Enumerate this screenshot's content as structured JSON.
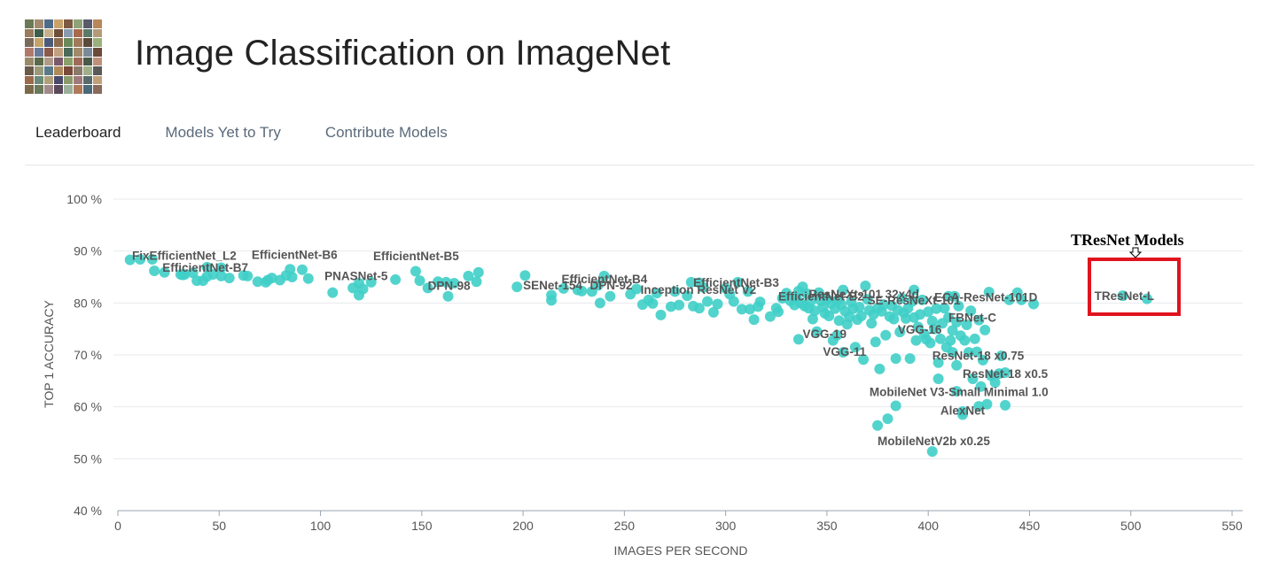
{
  "page": {
    "title": "Image Classification on ImageNet",
    "tabs": [
      {
        "label": "Leaderboard",
        "active": true
      },
      {
        "label": "Models Yet to Try",
        "active": false
      },
      {
        "label": "Contribute Models",
        "active": false
      }
    ]
  },
  "thumbnail_colors": [
    "#6b7a55",
    "#a38a6e",
    "#4f6b8a",
    "#c9a26b",
    "#7d5a44",
    "#8fa37a",
    "#5b5b6e",
    "#b7885a",
    "#9a7b5c",
    "#3e5e4a",
    "#c7b08e",
    "#6d4f3a",
    "#8a9bb0",
    "#a86a4a",
    "#5a7a6a",
    "#b59a7a",
    "#7a6a5a",
    "#c4a46a",
    "#4a5a7a",
    "#8b6b4b",
    "#6a8a5a",
    "#a07a5a",
    "#5a4a3a",
    "#9ab07a",
    "#b07a6a",
    "#6a7a9a",
    "#8a5a4a",
    "#c0a080",
    "#4a6a5a",
    "#a08a6a",
    "#7a8a9a",
    "#6b4a3a",
    "#9a8a6a",
    "#5a6a4a",
    "#b09a8a",
    "#7a5a6a",
    "#8aa06a",
    "#a06a5a",
    "#4a5a4a",
    "#c0907a",
    "#6a5a4a",
    "#9a9a7a",
    "#5a7a8a",
    "#b08a5a",
    "#7a4a3a",
    "#8a7a6a",
    "#a0b08a",
    "#5a5a5a",
    "#9a6a4a",
    "#6a8a7a",
    "#b0a07a",
    "#4a4a6a",
    "#8a9a6a",
    "#a07a7a",
    "#5a6a6a",
    "#c0a07a",
    "#7a6a4a",
    "#6a7a5a",
    "#a08a8a",
    "#5a4a5a",
    "#9ab09a",
    "#b07a5a",
    "#4a6a7a",
    "#8a6a5a"
  ],
  "chart_data": {
    "type": "scatter",
    "xlabel": "IMAGES PER SECOND",
    "ylabel": "TOP 1 ACCURACY",
    "xlim": [
      0,
      550
    ],
    "ylim": [
      40,
      100
    ],
    "xticks": [
      0,
      50,
      100,
      150,
      200,
      250,
      300,
      350,
      400,
      450,
      500,
      550
    ],
    "yticks": [
      40,
      50,
      60,
      70,
      80,
      90,
      100
    ],
    "ytick_suffix": " %",
    "point_color": "#3fcfc8",
    "annotation_title": "TResNet Models",
    "highlight_color": "#e0141e",
    "labels": [
      {
        "text": "FixEfficientNet_L2",
        "x": 7,
        "y": 88.3
      },
      {
        "text": "EfficientNet-B7",
        "x": 22,
        "y": 86.0
      },
      {
        "text": "EfficientNet-B6",
        "x": 66,
        "y": 88.5
      },
      {
        "text": "EfficientNet-B5",
        "x": 126,
        "y": 88.2
      },
      {
        "text": "PNASNet-5",
        "x": 102,
        "y": 84.4
      },
      {
        "text": "DPN-98",
        "x": 153,
        "y": 82.5
      },
      {
        "text": "EfficientNet-B4",
        "x": 219,
        "y": 83.8
      },
      {
        "text": "SENet-154",
        "x": 200,
        "y": 82.6
      },
      {
        "text": "DPN-92",
        "x": 233,
        "y": 82.6
      },
      {
        "text": "EfficientNet-B3",
        "x": 284,
        "y": 83.1
      },
      {
        "text": "Inception ResNet V2",
        "x": 258,
        "y": 81.8
      },
      {
        "text": "ResNeXt-101 32x4d",
        "x": 341,
        "y": 80.9
      },
      {
        "text": "EfficientNet-B2",
        "x": 326,
        "y": 80.5
      },
      {
        "text": "SE-ResNeXt-101",
        "x": 370,
        "y": 79.7
      },
      {
        "text": "ECA-ResNet-101D",
        "x": 403,
        "y": 80.3
      },
      {
        "text": "FBNet-C",
        "x": 410,
        "y": 76.4
      },
      {
        "text": "VGG-16",
        "x": 385,
        "y": 74.1
      },
      {
        "text": "VGG-19",
        "x": 338,
        "y": 73.2
      },
      {
        "text": "VGG-11",
        "x": 348,
        "y": 69.8
      },
      {
        "text": "ResNet-18 x0.75",
        "x": 402,
        "y": 69.1
      },
      {
        "text": "ResNet-18 x0.5",
        "x": 417,
        "y": 65.6
      },
      {
        "text": "MobileNet V3-Small Minimal 1.0",
        "x": 371,
        "y": 62.1
      },
      {
        "text": "AlexNet",
        "x": 406,
        "y": 58.5
      },
      {
        "text": "MobileNetV2b x0.25",
        "x": 375,
        "y": 52.6
      },
      {
        "text": "TResNet-L",
        "x": 482,
        "y": 80.6
      }
    ],
    "highlighted_points": [
      {
        "x": 496,
        "y": 81.4
      },
      {
        "x": 508,
        "y": 80.8
      }
    ],
    "points": [
      [
        6,
        88.3
      ],
      [
        11,
        88.4
      ],
      [
        17,
        88.4
      ],
      [
        18,
        86.2
      ],
      [
        23,
        85.9
      ],
      [
        31,
        85.5
      ],
      [
        32,
        85.4
      ],
      [
        33,
        85.5
      ],
      [
        37,
        85.8
      ],
      [
        39,
        84.3
      ],
      [
        42,
        84.3
      ],
      [
        44,
        85.1
      ],
      [
        44,
        86.9
      ],
      [
        47,
        85.5
      ],
      [
        51,
        86.8
      ],
      [
        51,
        85.2
      ],
      [
        55,
        84.8
      ],
      [
        62,
        85.3
      ],
      [
        64,
        85.2
      ],
      [
        69,
        84.1
      ],
      [
        73,
        84.0
      ],
      [
        74,
        84.4
      ],
      [
        76,
        84.8
      ],
      [
        80,
        84.4
      ],
      [
        83,
        85.3
      ],
      [
        85,
        86.5
      ],
      [
        86,
        85.0
      ],
      [
        91,
        86.4
      ],
      [
        94,
        84.7
      ],
      [
        106,
        82.0
      ],
      [
        116,
        82.9
      ],
      [
        119,
        83.8
      ],
      [
        119,
        81.5
      ],
      [
        121,
        82.7
      ],
      [
        125,
        84.0
      ],
      [
        137,
        84.5
      ],
      [
        147,
        86.1
      ],
      [
        149,
        84.3
      ],
      [
        153,
        82.9
      ],
      [
        158,
        84.1
      ],
      [
        162,
        84.0
      ],
      [
        163,
        81.3
      ],
      [
        166,
        83.8
      ],
      [
        173,
        85.2
      ],
      [
        177,
        84.1
      ],
      [
        178,
        85.9
      ],
      [
        197,
        83.1
      ],
      [
        201,
        85.3
      ],
      [
        214,
        81.5
      ],
      [
        214,
        80.5
      ],
      [
        220,
        82.8
      ],
      [
        227,
        82.5
      ],
      [
        229,
        82.3
      ],
      [
        234,
        82.2
      ],
      [
        237,
        83.4
      ],
      [
        238,
        80.0
      ],
      [
        240,
        85.2
      ],
      [
        243,
        81.3
      ],
      [
        253,
        81.7
      ],
      [
        256,
        82.7
      ],
      [
        259,
        79.7
      ],
      [
        262,
        80.6
      ],
      [
        264,
        79.9
      ],
      [
        266,
        81.9
      ],
      [
        268,
        77.7
      ],
      [
        273,
        79.3
      ],
      [
        275,
        82.2
      ],
      [
        277,
        79.6
      ],
      [
        281,
        81.4
      ],
      [
        283,
        84.0
      ],
      [
        284,
        79.4
      ],
      [
        287,
        83.9
      ],
      [
        287,
        79.0
      ],
      [
        289,
        83.0
      ],
      [
        291,
        80.3
      ],
      [
        294,
        78.2
      ],
      [
        296,
        79.8
      ],
      [
        300,
        82.8
      ],
      [
        302,
        81.7
      ],
      [
        304,
        80.3
      ],
      [
        306,
        84.0
      ],
      [
        308,
        78.8
      ],
      [
        311,
        82.2
      ],
      [
        312,
        78.8
      ],
      [
        314,
        76.8
      ],
      [
        316,
        79.3
      ],
      [
        317,
        80.2
      ],
      [
        322,
        77.4
      ],
      [
        325,
        79.0
      ],
      [
        326,
        78.3
      ],
      [
        328,
        80.9
      ],
      [
        330,
        81.9
      ],
      [
        332,
        80.4
      ],
      [
        334,
        79.6
      ],
      [
        335,
        81.0
      ],
      [
        336,
        73.0
      ],
      [
        336,
        82.3
      ],
      [
        337,
        80.0
      ],
      [
        338,
        83.1
      ],
      [
        339,
        79.4
      ],
      [
        340,
        81.8
      ],
      [
        341,
        79.0
      ],
      [
        342,
        80.3
      ],
      [
        343,
        76.9
      ],
      [
        344,
        78.5
      ],
      [
        345,
        74.5
      ],
      [
        346,
        82.0
      ],
      [
        347,
        80.4
      ],
      [
        348,
        79.2
      ],
      [
        349,
        78.0
      ],
      [
        350,
        80.7
      ],
      [
        351,
        77.5
      ],
      [
        352,
        79.9
      ],
      [
        353,
        72.8
      ],
      [
        354,
        78.9
      ],
      [
        355,
        80.4
      ],
      [
        355,
        73.8
      ],
      [
        356,
        76.6
      ],
      [
        357,
        79.7
      ],
      [
        358,
        82.5
      ],
      [
        358,
        70.5
      ],
      [
        359,
        78.4
      ],
      [
        360,
        75.9
      ],
      [
        361,
        77.3
      ],
      [
        362,
        80.2
      ],
      [
        363,
        78.9
      ],
      [
        364,
        71.5
      ],
      [
        365,
        76.8
      ],
      [
        366,
        79.2
      ],
      [
        367,
        77.5
      ],
      [
        368,
        69.1
      ],
      [
        369,
        83.3
      ],
      [
        370,
        80.7
      ],
      [
        371,
        78.6
      ],
      [
        372,
        76.1
      ],
      [
        373,
        77.8
      ],
      [
        374,
        72.5
      ],
      [
        375,
        79.0
      ],
      [
        375,
        56.4
      ],
      [
        376,
        67.3
      ],
      [
        377,
        78.4
      ],
      [
        378,
        79.7
      ],
      [
        379,
        73.8
      ],
      [
        380,
        57.7
      ],
      [
        381,
        77.4
      ],
      [
        382,
        79.5
      ],
      [
        383,
        76.9
      ],
      [
        384,
        60.2
      ],
      [
        384,
        69.3
      ],
      [
        385,
        78.6
      ],
      [
        386,
        74.4
      ],
      [
        387,
        80.9
      ],
      [
        388,
        78.1
      ],
      [
        389,
        77.0
      ],
      [
        390,
        79.0
      ],
      [
        391,
        69.3
      ],
      [
        392,
        80.3
      ],
      [
        393,
        82.5
      ],
      [
        393,
        77.2
      ],
      [
        394,
        72.8
      ],
      [
        395,
        75.4
      ],
      [
        396,
        77.8
      ],
      [
        397,
        80.6
      ],
      [
        398,
        74.0
      ],
      [
        399,
        73.0
      ],
      [
        400,
        78.3
      ],
      [
        401,
        72.3
      ],
      [
        402,
        76.5
      ],
      [
        402,
        51.4
      ],
      [
        403,
        75.0
      ],
      [
        404,
        78.9
      ],
      [
        405,
        68.5
      ],
      [
        405,
        65.4
      ],
      [
        406,
        73.1
      ],
      [
        407,
        76.1
      ],
      [
        408,
        79.0
      ],
      [
        409,
        71.5
      ],
      [
        410,
        81.3
      ],
      [
        410,
        77.2
      ],
      [
        411,
        72.8
      ],
      [
        412,
        74.7
      ],
      [
        412,
        70.5
      ],
      [
        413,
        81.3
      ],
      [
        414,
        76.3
      ],
      [
        414,
        68.0
      ],
      [
        414,
        63.0
      ],
      [
        415,
        79.4
      ],
      [
        416,
        73.7
      ],
      [
        417,
        59.1
      ],
      [
        417,
        58.5
      ],
      [
        418,
        72.8
      ],
      [
        419,
        75.8
      ],
      [
        420,
        70.5
      ],
      [
        421,
        78.5
      ],
      [
        422,
        65.4
      ],
      [
        423,
        73.1
      ],
      [
        424,
        70.6
      ],
      [
        425,
        76.7
      ],
      [
        425,
        60.1
      ],
      [
        426,
        63.9
      ],
      [
        427,
        69.0
      ],
      [
        428,
        74.8
      ],
      [
        429,
        60.5
      ],
      [
        430,
        82.1
      ],
      [
        431,
        66.0
      ],
      [
        433,
        64.7
      ],
      [
        435,
        66.4
      ],
      [
        436,
        69.8
      ],
      [
        438,
        66.6
      ],
      [
        438,
        60.3
      ],
      [
        440,
        80.6
      ],
      [
        444,
        82.0
      ],
      [
        446,
        80.6
      ],
      [
        452,
        79.8
      ]
    ]
  }
}
